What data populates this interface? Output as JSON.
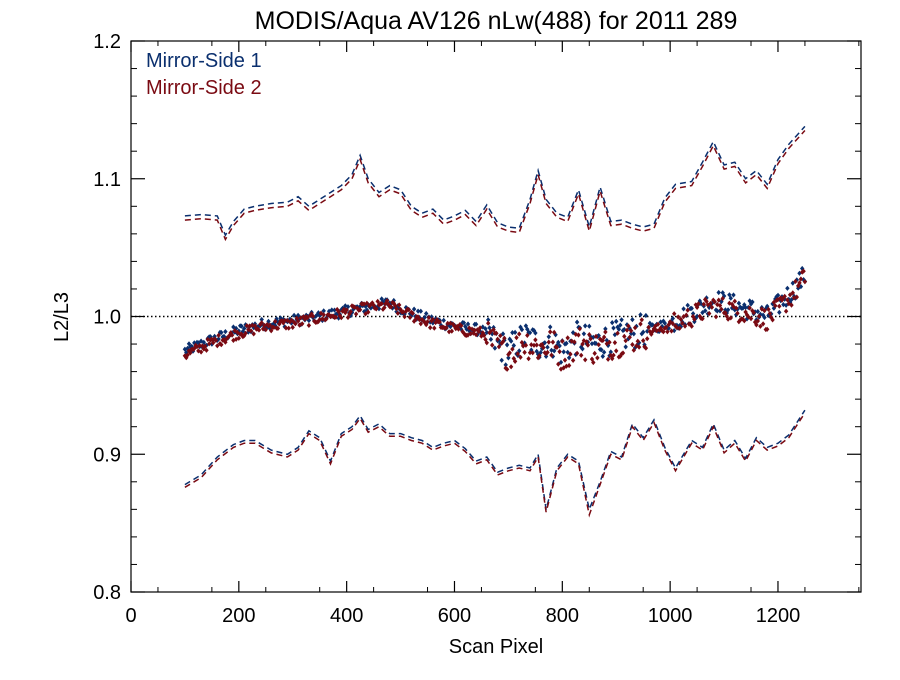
{
  "chart_data": {
    "type": "scatter",
    "title": "MODIS/Aqua AV126 nLw(488) for 2011 289",
    "xlabel": "Scan Pixel",
    "ylabel": "L2/L3",
    "xlim": [
      0,
      1354
    ],
    "ylim": [
      0.8,
      1.2
    ],
    "xticks": [
      0,
      200,
      400,
      600,
      800,
      1000,
      1200
    ],
    "xtick_labels": [
      "0",
      "200",
      "400",
      "600",
      "800",
      "1000",
      "1200"
    ],
    "yticks": [
      0.8,
      0.9,
      1.0,
      1.1,
      1.2
    ],
    "ytick_labels": [
      "0.8",
      "0.9",
      "1.0",
      "1.1",
      "1.2"
    ],
    "reference_line": {
      "y": 1.0,
      "style": "dotted"
    },
    "legend": {
      "placement": "top-left"
    },
    "colors": {
      "ms1": "#0a2f6e",
      "ms2": "#7a0a12",
      "axis": "#000000"
    },
    "series": [
      {
        "name": "Mirror-Side 1",
        "color": "#0a2f6e",
        "mean": {
          "x": [
            100,
            150,
            200,
            250,
            300,
            350,
            400,
            450,
            480,
            500,
            550,
            600,
            650,
            680,
            700,
            730,
            760,
            780,
            800,
            830,
            860,
            900,
            950,
            1000,
            1050,
            1080,
            1100,
            1150,
            1180,
            1200,
            1230,
            1250
          ],
          "y": [
            0.975,
            0.983,
            0.99,
            0.995,
            0.997,
            1.0,
            1.004,
            1.008,
            1.01,
            1.006,
            0.998,
            0.993,
            0.99,
            0.98,
            0.975,
            0.985,
            0.98,
            0.983,
            0.975,
            0.985,
            0.98,
            0.985,
            0.99,
            0.995,
            1.005,
            1.012,
            1.01,
            1.005,
            1.0,
            1.008,
            1.02,
            1.03
          ]
        },
        "upper": {
          "x": [
            100,
            130,
            160,
            175,
            190,
            210,
            230,
            260,
            290,
            310,
            330,
            350,
            370,
            390,
            410,
            425,
            440,
            460,
            480,
            500,
            520,
            540,
            560,
            580,
            600,
            620,
            640,
            660,
            680,
            700,
            720,
            740,
            755,
            770,
            790,
            810,
            830,
            850,
            870,
            890,
            910,
            930,
            950,
            970,
            990,
            1010,
            1040,
            1060,
            1080,
            1100,
            1120,
            1140,
            1160,
            1180,
            1200,
            1220,
            1250
          ],
          "y": [
            1.073,
            1.074,
            1.073,
            1.059,
            1.069,
            1.078,
            1.08,
            1.082,
            1.083,
            1.087,
            1.08,
            1.085,
            1.09,
            1.095,
            1.103,
            1.117,
            1.1,
            1.09,
            1.095,
            1.092,
            1.08,
            1.075,
            1.078,
            1.07,
            1.073,
            1.077,
            1.069,
            1.081,
            1.068,
            1.065,
            1.064,
            1.085,
            1.106,
            1.085,
            1.075,
            1.072,
            1.092,
            1.065,
            1.094,
            1.069,
            1.07,
            1.067,
            1.065,
            1.067,
            1.086,
            1.096,
            1.098,
            1.112,
            1.127,
            1.11,
            1.112,
            1.1,
            1.106,
            1.096,
            1.114,
            1.125,
            1.138
          ]
        },
        "lower": {
          "x": [
            100,
            130,
            160,
            190,
            210,
            230,
            260,
            290,
            310,
            330,
            350,
            370,
            390,
            410,
            425,
            440,
            460,
            480,
            500,
            520,
            540,
            560,
            580,
            600,
            620,
            640,
            660,
            680,
            700,
            720,
            740,
            755,
            770,
            790,
            810,
            830,
            850,
            870,
            890,
            910,
            930,
            950,
            970,
            990,
            1010,
            1040,
            1060,
            1080,
            1100,
            1120,
            1140,
            1160,
            1180,
            1200,
            1220,
            1250
          ],
          "y": [
            0.878,
            0.885,
            0.898,
            0.907,
            0.91,
            0.91,
            0.903,
            0.9,
            0.905,
            0.917,
            0.912,
            0.895,
            0.915,
            0.92,
            0.928,
            0.918,
            0.922,
            0.915,
            0.915,
            0.912,
            0.91,
            0.905,
            0.908,
            0.91,
            0.904,
            0.895,
            0.898,
            0.887,
            0.89,
            0.892,
            0.89,
            0.9,
            0.86,
            0.89,
            0.9,
            0.895,
            0.86,
            0.88,
            0.902,
            0.898,
            0.922,
            0.912,
            0.925,
            0.905,
            0.89,
            0.91,
            0.905,
            0.922,
            0.903,
            0.91,
            0.897,
            0.912,
            0.905,
            0.908,
            0.914,
            0.932
          ]
        }
      },
      {
        "name": "Mirror-Side 2",
        "color": "#7a0a12",
        "mean": {
          "x": [
            100,
            150,
            200,
            250,
            300,
            350,
            400,
            450,
            480,
            500,
            550,
            600,
            650,
            680,
            700,
            730,
            760,
            780,
            800,
            830,
            860,
            900,
            950,
            1000,
            1050,
            1080,
            1100,
            1150,
            1180,
            1200,
            1230,
            1250
          ],
          "y": [
            0.972,
            0.981,
            0.988,
            0.993,
            0.995,
            0.999,
            1.003,
            1.007,
            1.008,
            1.004,
            0.996,
            0.991,
            0.988,
            0.978,
            0.973,
            0.982,
            0.977,
            0.98,
            0.972,
            0.982,
            0.977,
            0.982,
            0.988,
            0.993,
            1.002,
            1.008,
            1.006,
            1.002,
            0.998,
            1.005,
            1.017,
            1.028
          ]
        },
        "upper": {
          "x": [
            100,
            130,
            160,
            175,
            190,
            210,
            230,
            260,
            290,
            310,
            330,
            350,
            370,
            390,
            410,
            425,
            440,
            460,
            480,
            500,
            520,
            540,
            560,
            580,
            600,
            620,
            640,
            660,
            680,
            700,
            720,
            740,
            755,
            770,
            790,
            810,
            830,
            850,
            870,
            890,
            910,
            930,
            950,
            970,
            990,
            1010,
            1040,
            1060,
            1080,
            1100,
            1120,
            1140,
            1160,
            1180,
            1200,
            1220,
            1250
          ],
          "y": [
            1.07,
            1.071,
            1.07,
            1.056,
            1.066,
            1.075,
            1.077,
            1.079,
            1.08,
            1.084,
            1.077,
            1.082,
            1.087,
            1.092,
            1.1,
            1.114,
            1.097,
            1.087,
            1.092,
            1.089,
            1.077,
            1.072,
            1.075,
            1.067,
            1.07,
            1.074,
            1.066,
            1.078,
            1.065,
            1.062,
            1.061,
            1.082,
            1.103,
            1.082,
            1.072,
            1.069,
            1.089,
            1.062,
            1.091,
            1.066,
            1.067,
            1.064,
            1.062,
            1.064,
            1.083,
            1.093,
            1.095,
            1.109,
            1.124,
            1.107,
            1.109,
            1.097,
            1.103,
            1.093,
            1.111,
            1.122,
            1.135
          ]
        },
        "lower": {
          "x": [
            100,
            130,
            160,
            190,
            210,
            230,
            260,
            290,
            310,
            330,
            350,
            370,
            390,
            410,
            425,
            440,
            460,
            480,
            500,
            520,
            540,
            560,
            580,
            600,
            620,
            640,
            660,
            680,
            700,
            720,
            740,
            755,
            770,
            790,
            810,
            830,
            850,
            870,
            890,
            910,
            930,
            950,
            970,
            990,
            1010,
            1040,
            1060,
            1080,
            1100,
            1120,
            1140,
            1160,
            1180,
            1200,
            1220,
            1250
          ],
          "y": [
            0.876,
            0.883,
            0.896,
            0.905,
            0.908,
            0.908,
            0.901,
            0.898,
            0.903,
            0.915,
            0.91,
            0.893,
            0.913,
            0.918,
            0.926,
            0.916,
            0.92,
            0.913,
            0.913,
            0.91,
            0.908,
            0.903,
            0.906,
            0.908,
            0.902,
            0.893,
            0.896,
            0.885,
            0.888,
            0.89,
            0.888,
            0.898,
            0.858,
            0.888,
            0.898,
            0.893,
            0.856,
            0.878,
            0.9,
            0.896,
            0.92,
            0.91,
            0.923,
            0.903,
            0.888,
            0.908,
            0.903,
            0.92,
            0.901,
            0.908,
            0.895,
            0.91,
            0.903,
            0.906,
            0.912,
            0.93
          ]
        }
      }
    ]
  }
}
